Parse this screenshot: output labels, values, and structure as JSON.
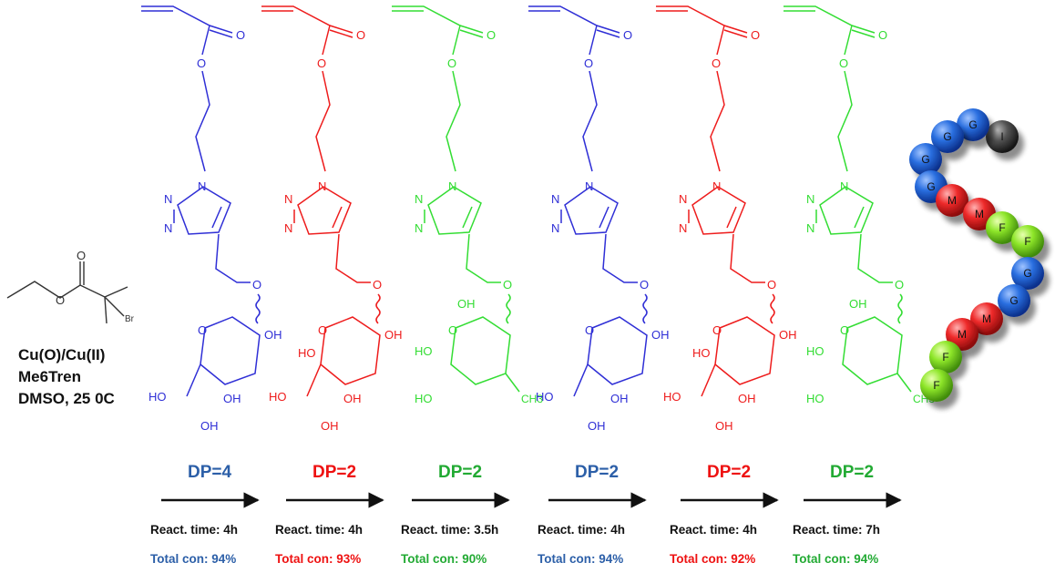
{
  "initiator": {
    "br_label": "Br",
    "o_label": "O"
  },
  "conditions": {
    "line1": "Cu(O)/Cu(II)",
    "line2": "Me6Tren",
    "line3": "DMSO, 25 0C"
  },
  "atoms": {
    "O": "O",
    "N": "N",
    "OH": "OH",
    "HO": "HO",
    "CH3": "CH3"
  },
  "colors": {
    "blue": "#2f2fd6",
    "red": "#ee1c1c",
    "green": "#33dd33",
    "blue_text": "#2c5fa8",
    "red_text": "#ee1111",
    "green_text": "#22aa33",
    "arrow": "#111111"
  },
  "steps": [
    {
      "color": "blue",
      "sugar": "mannose",
      "dp": "DP=4",
      "react_time": "React. time:  4h",
      "total_con": "Total con: 94%"
    },
    {
      "color": "red",
      "sugar": "glucose",
      "dp": "DP=2",
      "react_time": "React. time:  4h",
      "total_con": "Total con: 93%"
    },
    {
      "color": "green",
      "sugar": "fucose",
      "dp": "DP=2",
      "react_time": "React. time:  3.5h",
      "total_con": "Total con: 90%"
    },
    {
      "color": "blue",
      "sugar": "mannose",
      "dp": "DP=2",
      "react_time": "React. time:  4h",
      "total_con": "Total con: 94%"
    },
    {
      "color": "red",
      "sugar": "glucose",
      "dp": "DP=2",
      "react_time": "React. time:  4h",
      "total_con": "Total con: 92%"
    },
    {
      "color": "green",
      "sugar": "fucose",
      "dp": "DP=2",
      "react_time": "React. time:  7h",
      "total_con": "Total con: 94%"
    }
  ],
  "bead_chain": [
    {
      "label": "I",
      "kind": "gray"
    },
    {
      "label": "G",
      "kind": "blue"
    },
    {
      "label": "G",
      "kind": "blue"
    },
    {
      "label": "G",
      "kind": "blue"
    },
    {
      "label": "G",
      "kind": "blue"
    },
    {
      "label": "M",
      "kind": "red"
    },
    {
      "label": "M",
      "kind": "red"
    },
    {
      "label": "F",
      "kind": "green"
    },
    {
      "label": "F",
      "kind": "green"
    },
    {
      "label": "G",
      "kind": "blue"
    },
    {
      "label": "G",
      "kind": "blue"
    },
    {
      "label": "M",
      "kind": "red"
    },
    {
      "label": "M",
      "kind": "red"
    },
    {
      "label": "F",
      "kind": "green"
    },
    {
      "label": "F",
      "kind": "green"
    }
  ]
}
